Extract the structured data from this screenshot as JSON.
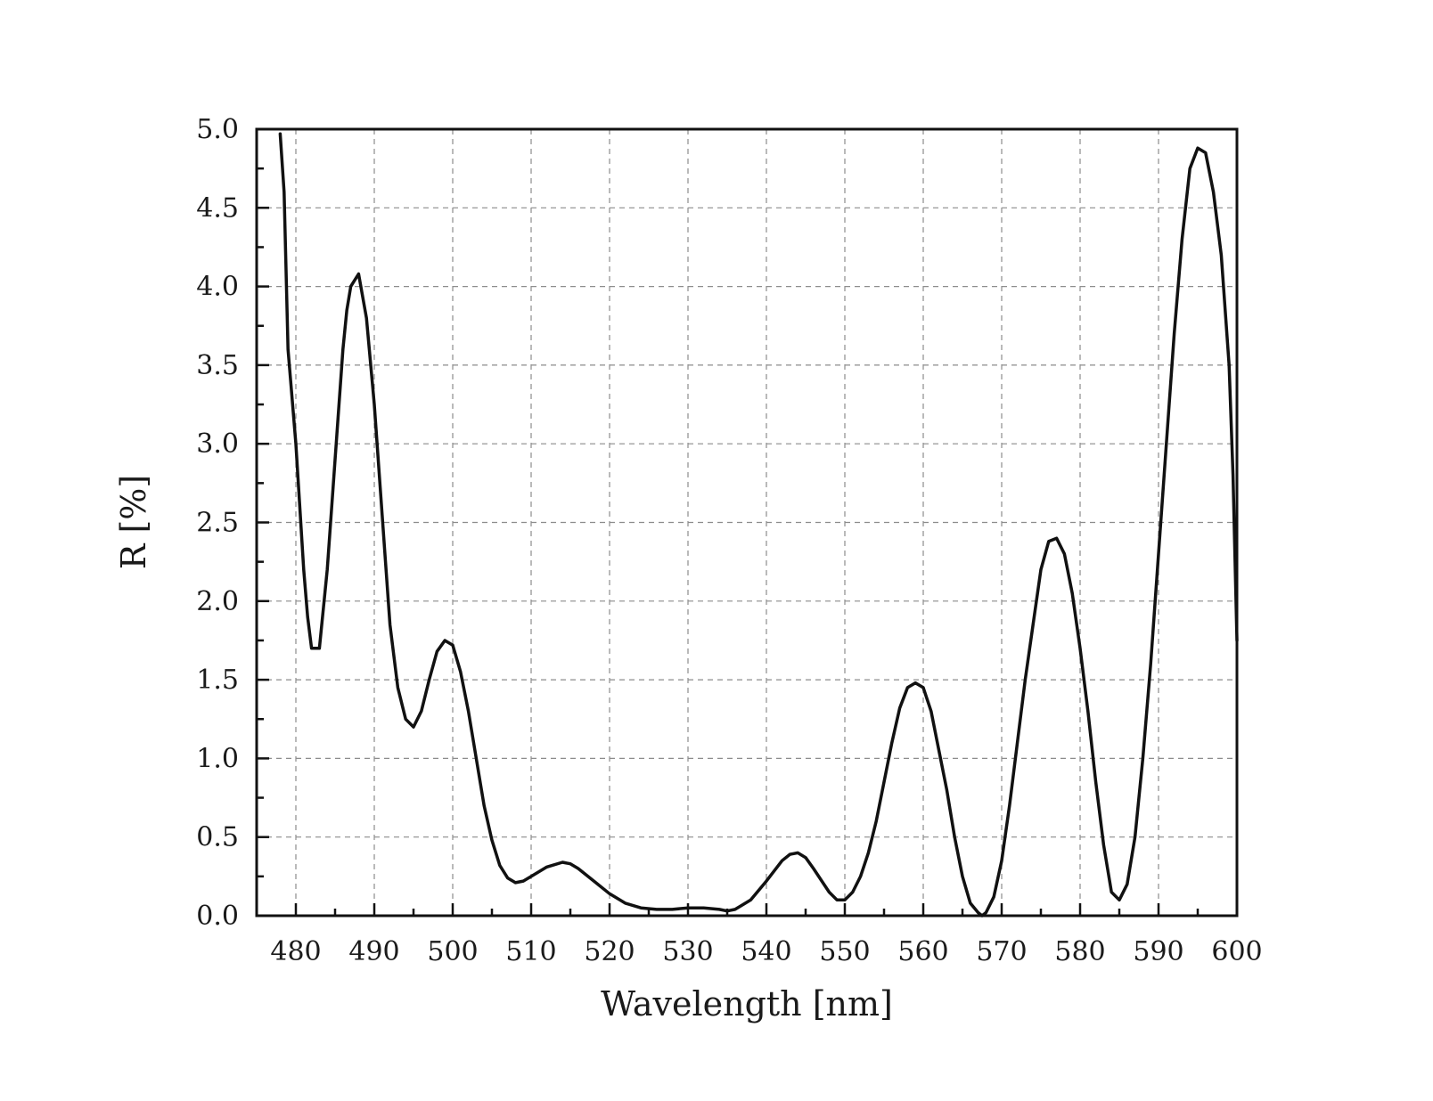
{
  "chart_data": {
    "type": "line",
    "title": "",
    "xlabel": "Wavelength [nm]",
    "ylabel": "R [%]",
    "xlim": [
      475,
      600
    ],
    "ylim": [
      0,
      5
    ],
    "x_ticks": [
      480,
      490,
      500,
      510,
      520,
      530,
      540,
      550,
      560,
      570,
      580,
      590,
      600
    ],
    "x_tick_labels": [
      "480",
      "490",
      "500",
      "510",
      "520",
      "530",
      "540",
      "550",
      "560",
      "570",
      "580",
      "590",
      "600"
    ],
    "y_ticks": [
      0,
      0.5,
      1,
      1.5,
      2,
      2.5,
      3,
      3.5,
      4,
      4.5,
      5
    ],
    "y_tick_labels": [
      "0.0",
      "0.5",
      "1.0",
      "1.5",
      "2.0",
      "2.5",
      "3.0",
      "3.5",
      "4.0",
      "4.5",
      "5.0"
    ],
    "grid": true,
    "line_color": "#111111",
    "series": [
      {
        "x": [
          478,
          478.5,
          479,
          480,
          481,
          481.5,
          482,
          483,
          484,
          485,
          486,
          486.5,
          487,
          488,
          489,
          490,
          491,
          492,
          493,
          494,
          495,
          496,
          497,
          498,
          499,
          500,
          501,
          502,
          503,
          504,
          505,
          506,
          507,
          508,
          509,
          510,
          512,
          514,
          515,
          516,
          518,
          520,
          522,
          524,
          526,
          528,
          530,
          532,
          534,
          535,
          536,
          538,
          540,
          542,
          543,
          544,
          545,
          546,
          548,
          549,
          550,
          551,
          552,
          553,
          554,
          555,
          556,
          557,
          558,
          559,
          560,
          561,
          562,
          563,
          564,
          565,
          566,
          567,
          567.5,
          568,
          569,
          570,
          571,
          572,
          573,
          574,
          575,
          576,
          577,
          578,
          579,
          580,
          581,
          582,
          583,
          584,
          585,
          586,
          587,
          588,
          589,
          590,
          591,
          592,
          593,
          594,
          595,
          596,
          597,
          598,
          599,
          599.5,
          600
        ],
        "y": [
          4.97,
          4.6,
          3.6,
          3.0,
          2.2,
          1.9,
          1.7,
          1.7,
          2.2,
          2.9,
          3.6,
          3.85,
          4.0,
          4.08,
          3.8,
          3.25,
          2.55,
          1.85,
          1.45,
          1.25,
          1.2,
          1.3,
          1.5,
          1.68,
          1.75,
          1.72,
          1.55,
          1.3,
          1.0,
          0.7,
          0.48,
          0.32,
          0.24,
          0.21,
          0.22,
          0.25,
          0.31,
          0.34,
          0.33,
          0.3,
          0.22,
          0.14,
          0.08,
          0.05,
          0.04,
          0.04,
          0.05,
          0.05,
          0.04,
          0.03,
          0.04,
          0.1,
          0.22,
          0.35,
          0.39,
          0.4,
          0.37,
          0.3,
          0.15,
          0.1,
          0.1,
          0.15,
          0.25,
          0.4,
          0.6,
          0.85,
          1.1,
          1.32,
          1.45,
          1.48,
          1.45,
          1.3,
          1.05,
          0.8,
          0.5,
          0.25,
          0.08,
          0.02,
          0.0,
          0.02,
          0.12,
          0.35,
          0.7,
          1.1,
          1.5,
          1.85,
          2.2,
          2.38,
          2.4,
          2.3,
          2.05,
          1.7,
          1.3,
          0.85,
          0.45,
          0.15,
          0.1,
          0.2,
          0.5,
          1.0,
          1.6,
          2.3,
          3.0,
          3.7,
          4.3,
          4.75,
          4.88,
          4.85,
          4.6,
          4.2,
          3.5,
          2.8,
          1.75
        ]
      }
    ]
  }
}
